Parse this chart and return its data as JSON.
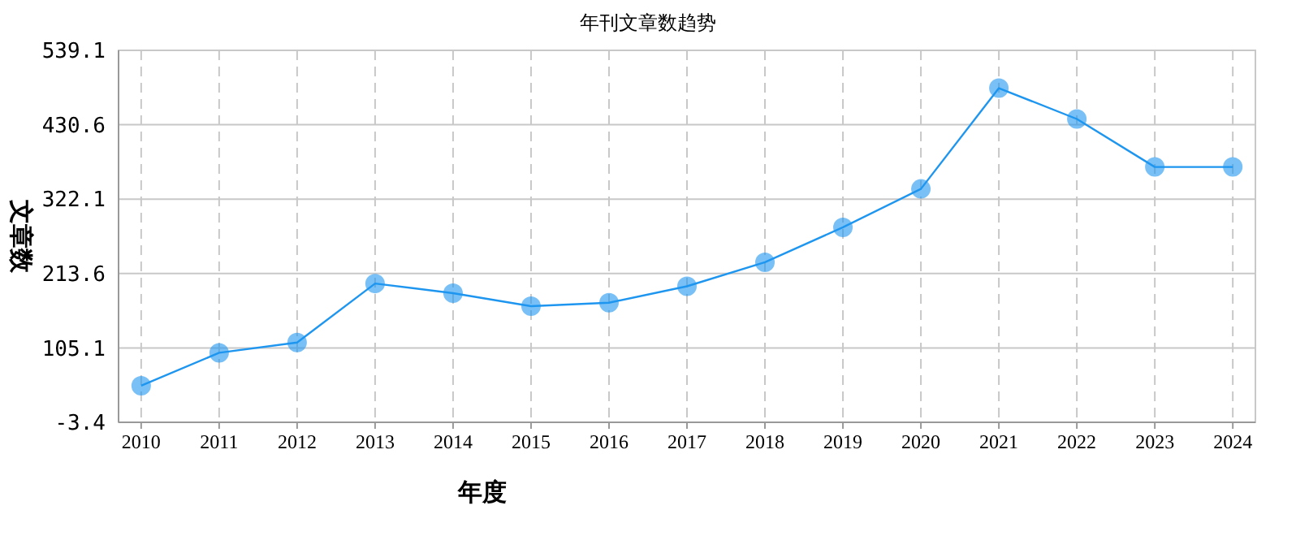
{
  "chart_data": {
    "type": "line",
    "title": "年刊文章数趋势",
    "xlabel": "年度",
    "ylabel": "文章数",
    "categories": [
      "2010",
      "2011",
      "2012",
      "2013",
      "2014",
      "2015",
      "2016",
      "2017",
      "2018",
      "2019",
      "2020",
      "2021",
      "2022",
      "2023",
      "2024"
    ],
    "series": [
      {
        "color": "#1e96f0",
        "values": [
          50,
          98,
          113,
          199,
          185,
          166,
          171,
          195,
          230,
          281,
          337,
          484,
          439,
          369,
          369
        ]
      }
    ],
    "ylim": [
      -3.4,
      539.1
    ],
    "yticks": [
      -3.4,
      105.1,
      213.6,
      322.1,
      430.6,
      539.1
    ],
    "grid": true,
    "marker": "circle",
    "line_style": "solid"
  }
}
